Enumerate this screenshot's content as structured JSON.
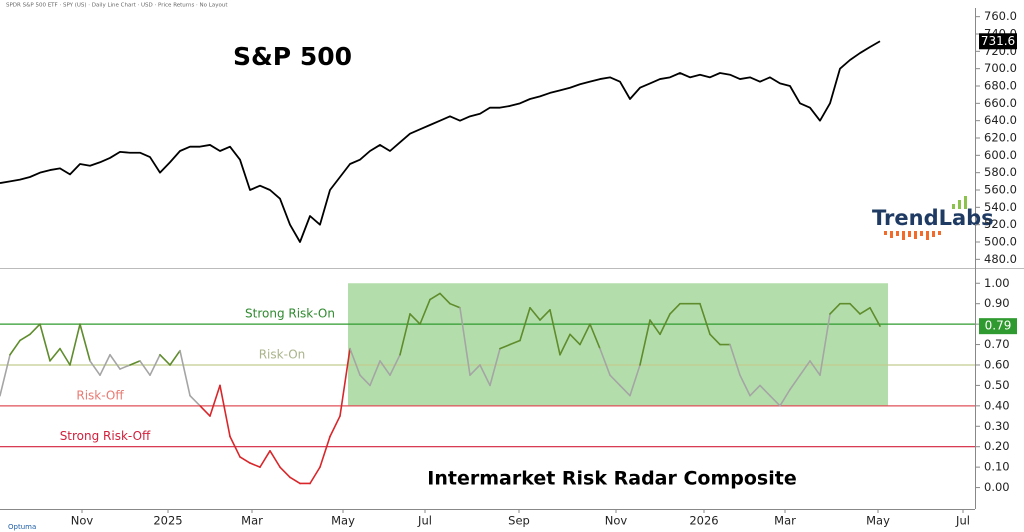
{
  "chart_data": [
    {
      "type": "line",
      "title": "S&P 500",
      "subtitle": "SPDR S&P 500 ETF · SPY (US) · Daily Line Chart · USD · Price Returns · No Layout",
      "annotation": "TrendLabs",
      "color": "#000000",
      "xlim": [
        0,
        97.5
      ],
      "ylim": [
        470,
        770
      ],
      "yticks": [
        {
          "value": 480,
          "label": "480.0"
        },
        {
          "value": 500,
          "label": "500.0"
        },
        {
          "value": 520,
          "label": "520.0"
        },
        {
          "value": 540,
          "label": "540.0"
        },
        {
          "value": 560,
          "label": "560.0"
        },
        {
          "value": 580,
          "label": "580.0"
        },
        {
          "value": 600,
          "label": "600.0"
        },
        {
          "value": 620,
          "label": "620.0"
        },
        {
          "value": 640,
          "label": "640.0"
        },
        {
          "value": 660,
          "label": "660.0"
        },
        {
          "value": 680,
          "label": "680.0"
        },
        {
          "value": 700,
          "label": "700.0"
        },
        {
          "value": 720,
          "label": "720.0"
        },
        {
          "value": 740,
          "label": "740.0"
        },
        {
          "value": 760,
          "label": "760.0"
        }
      ],
      "values": [
        568,
        570,
        572,
        575,
        580,
        583,
        585,
        578,
        590,
        588,
        592,
        597,
        604,
        603,
        603,
        598,
        580,
        592,
        605,
        610,
        610,
        612,
        605,
        610,
        595,
        560,
        565,
        560,
        550,
        520,
        500,
        530,
        520,
        560,
        575,
        590,
        595,
        605,
        612,
        605,
        615,
        625,
        630,
        635,
        640,
        645,
        640,
        645,
        648,
        655,
        655,
        657,
        660,
        665,
        668,
        672,
        675,
        678,
        682,
        685,
        688,
        690,
        685,
        665,
        678,
        683,
        688,
        690,
        695,
        690,
        693,
        690,
        695,
        693,
        688,
        690,
        685,
        690,
        683,
        680,
        660,
        655,
        640,
        660,
        700,
        710,
        718,
        725,
        731.6
      ]
    },
    {
      "type": "line",
      "title": "Intermarket Risk Radar Composite",
      "annotation": "Optuma",
      "xlim": [
        0,
        97.5
      ],
      "xticks": [
        {
          "value": 8.2,
          "label": "Nov"
        },
        {
          "value": 16.8,
          "label": "2025"
        },
        {
          "value": 25.2,
          "label": "Mar"
        },
        {
          "value": 34.3,
          "label": "May"
        },
        {
          "value": 42.5,
          "label": "Jul"
        },
        {
          "value": 51.9,
          "label": "Sep"
        },
        {
          "value": 61.6,
          "label": "Nov"
        },
        {
          "value": 70.4,
          "label": "2026"
        },
        {
          "value": 78.5,
          "label": "Mar"
        },
        {
          "value": 87.8,
          "label": "May"
        },
        {
          "value": 96.3,
          "label": "Jul"
        }
      ],
      "ylim": [
        -0.1,
        1.06
      ],
      "yticks": [
        {
          "value": 0,
          "label": "0.00"
        },
        {
          "value": 0.1,
          "label": "0.10"
        },
        {
          "value": 0.2,
          "label": "0.20"
        },
        {
          "value": 0.3,
          "label": "0.30"
        },
        {
          "value": 0.4,
          "label": "0.40"
        },
        {
          "value": 0.5,
          "label": "0.50"
        },
        {
          "value": 0.6,
          "label": "0.60"
        },
        {
          "value": 0.7,
          "label": "0.70"
        },
        {
          "value": 0.8,
          "label": "0.80"
        },
        {
          "value": 0.9,
          "label": "0.90"
        },
        {
          "value": 1,
          "label": "1.00"
        }
      ],
      "reference_lines": [
        {
          "value": 0.8,
          "label": "Strong Risk-On",
          "color": "#2f9a2f",
          "label_color": "#2f8a2f"
        },
        {
          "value": 0.6,
          "label": "Risk-On",
          "color": "#c2cc8e",
          "label_color": "#a9b48a"
        },
        {
          "value": 0.4,
          "label": "Risk-Off",
          "color": "#e0505a",
          "label_color": "#e77a72"
        },
        {
          "value": 0.2,
          "label": "Strong Risk-Off",
          "color": "#d21f3c",
          "label_color": "#d21f3c"
        }
      ],
      "shaded": {
        "x": [
          34.8,
          88.8
        ],
        "y": [
          0.4,
          1.0
        ],
        "color": "#a6d89c"
      },
      "bands": [
        {
          "from": 0.6,
          "color": "#5f8c2c"
        },
        {
          "from": 0.4,
          "color": "#a5a5a5"
        }
      ],
      "below_color": "#d9262a",
      "label_color": "#2f9a2f",
      "values": [
        0.45,
        0.65,
        0.72,
        0.75,
        0.8,
        0.62,
        0.68,
        0.6,
        0.8,
        0.62,
        0.55,
        0.65,
        0.58,
        0.6,
        0.62,
        0.55,
        0.65,
        0.6,
        0.67,
        0.45,
        0.4,
        0.35,
        0.5,
        0.25,
        0.15,
        0.12,
        0.1,
        0.18,
        0.1,
        0.05,
        0.02,
        0.02,
        0.1,
        0.25,
        0.35,
        0.68,
        0.55,
        0.5,
        0.62,
        0.55,
        0.65,
        0.85,
        0.8,
        0.92,
        0.95,
        0.9,
        0.88,
        0.55,
        0.6,
        0.5,
        0.68,
        0.7,
        0.72,
        0.88,
        0.82,
        0.87,
        0.65,
        0.75,
        0.7,
        0.8,
        0.68,
        0.55,
        0.5,
        0.45,
        0.6,
        0.82,
        0.75,
        0.85,
        0.9,
        0.9,
        0.9,
        0.75,
        0.7,
        0.7,
        0.55,
        0.45,
        0.5,
        0.45,
        0.4,
        0.48,
        0.55,
        0.62,
        0.55,
        0.85,
        0.9,
        0.9,
        0.85,
        0.88,
        0.79
      ]
    }
  ]
}
